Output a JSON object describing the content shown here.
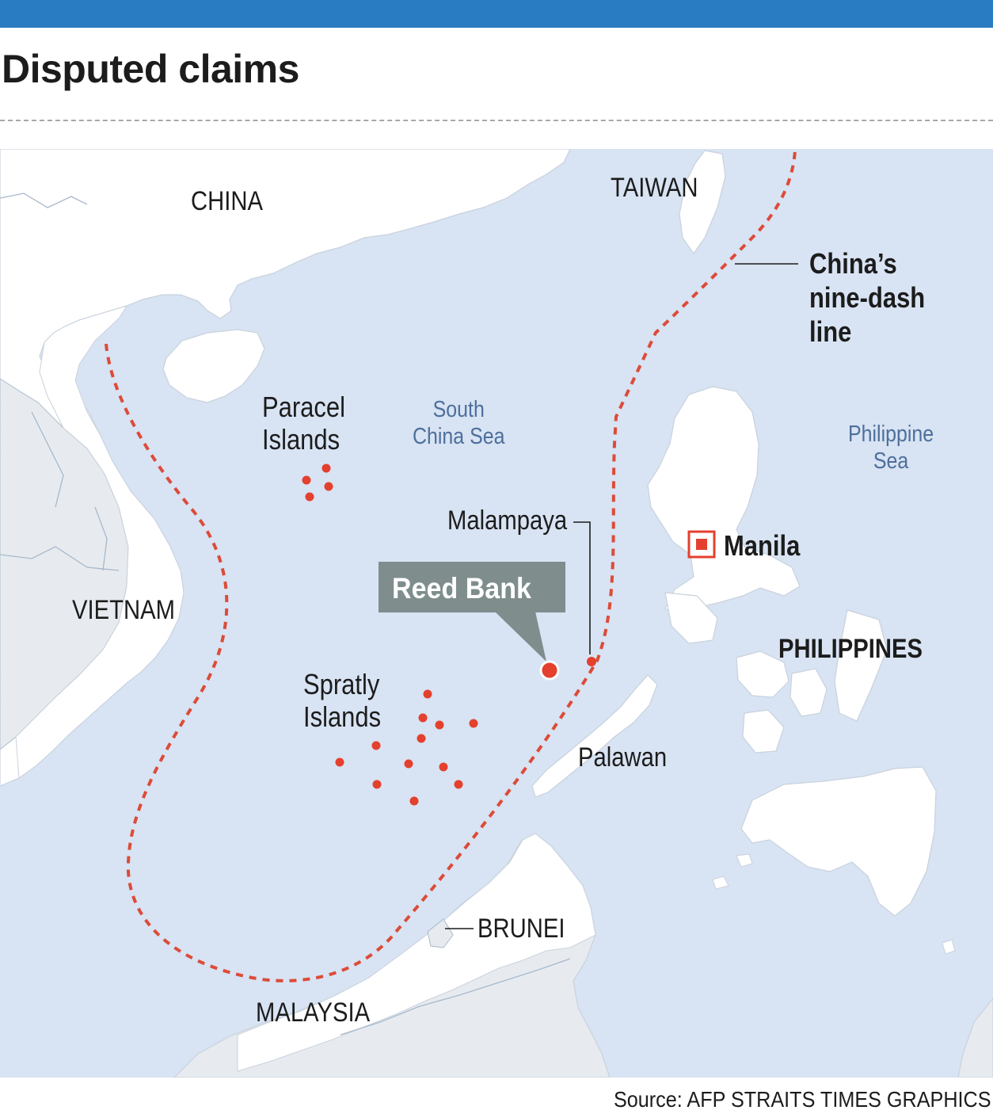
{
  "header": {
    "title": "Disputed claims"
  },
  "map": {
    "countries": {
      "china": "CHINA",
      "taiwan": "TAIWAN",
      "vietnam": "VIETNAM",
      "philippines": "PHILIPPINES",
      "malaysia": "MALAYSIA",
      "brunei": "BRUNEI"
    },
    "seas": {
      "south_china_sea": [
        "South",
        "China Sea"
      ],
      "philippine_sea": [
        "Philippine",
        "Sea"
      ]
    },
    "islands": {
      "paracel": [
        "Paracel",
        "Islands"
      ],
      "spratly": [
        "Spratly",
        "Islands"
      ],
      "palawan": "Palawan"
    },
    "places": {
      "malampaya": "Malampaya",
      "manila": "Manila",
      "reed_bank": "Reed Bank"
    },
    "nine_dash_line_label": [
      "China’s",
      "nine-dash",
      "line"
    ],
    "colors": {
      "sea": "#d8e3f3",
      "land": "#ffffff",
      "other_land": "#e7ebef",
      "nine_dash_line": "#dc4b38",
      "marker": "#e4402e",
      "callout": "#7f8d8d",
      "header_bar": "#2a7cc2"
    }
  },
  "footer": {
    "source": "Source: AFP    STRAITS TIMES GRAPHICS"
  }
}
